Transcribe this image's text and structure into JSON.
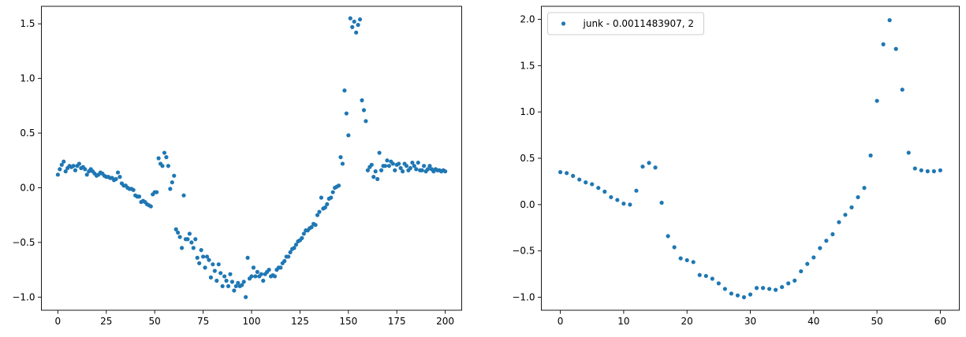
{
  "chart_data": [
    {
      "type": "scatter",
      "marker_color": "#1f77b4",
      "grid": false,
      "legend": null,
      "xlim": [
        -8.5,
        208.5
      ],
      "ylim": [
        -1.12,
        1.66
      ],
      "xticks": [
        0,
        25,
        50,
        75,
        100,
        125,
        150,
        175,
        200
      ],
      "yticks": [
        -1.0,
        -0.5,
        0.0,
        0.5,
        1.0,
        1.5
      ],
      "ytick_labels": [
        "−1.0",
        "−0.5",
        "0.0",
        "0.5",
        "1.0",
        "1.5"
      ],
      "series": [
        {
          "x": [
            0,
            1,
            2,
            3,
            4,
            5,
            6,
            7,
            8,
            9,
            10,
            11,
            12,
            13,
            14,
            15,
            16,
            17,
            18,
            19,
            20,
            21,
            22,
            23,
            24,
            25,
            26,
            27,
            28,
            29,
            30,
            31,
            32,
            33,
            34,
            35,
            36,
            37,
            38,
            39,
            40,
            41,
            42,
            43,
            44,
            45,
            46,
            47,
            48,
            49,
            50,
            51,
            52,
            53,
            54,
            55,
            56,
            57,
            58,
            59,
            60,
            61,
            62,
            63,
            64,
            65,
            66,
            67,
            68,
            69,
            70,
            71,
            72,
            73,
            74,
            75,
            76,
            77,
            78,
            79,
            80,
            81,
            82,
            83,
            84,
            85,
            86,
            87,
            88,
            89,
            90,
            91,
            92,
            93,
            94,
            95,
            96,
            97,
            98,
            99,
            100,
            101,
            102,
            103,
            104,
            105,
            106,
            107,
            108,
            109,
            110,
            111,
            112,
            113,
            114,
            115,
            116,
            117,
            118,
            119,
            120,
            121,
            122,
            123,
            124,
            125,
            126,
            127,
            128,
            129,
            130,
            131,
            132,
            133,
            134,
            135,
            136,
            137,
            138,
            139,
            140,
            141,
            142,
            143,
            144,
            145,
            146,
            147,
            148,
            149,
            150,
            151,
            152,
            153,
            154,
            155,
            156,
            157,
            158,
            159,
            160,
            161,
            162,
            163,
            164,
            165,
            166,
            167,
            168,
            169,
            170,
            171,
            172,
            173,
            174,
            175,
            176,
            177,
            178,
            179,
            180,
            181,
            182,
            183,
            184,
            185,
            186,
            187,
            188,
            189,
            190,
            191,
            192,
            193,
            194,
            195,
            196,
            197,
            198,
            199,
            200
          ],
          "y": [
            0.12,
            0.17,
            0.21,
            0.24,
            0.15,
            0.18,
            0.2,
            0.19,
            0.2,
            0.16,
            0.2,
            0.22,
            0.18,
            0.19,
            0.17,
            0.12,
            0.15,
            0.17,
            0.15,
            0.13,
            0.11,
            0.12,
            0.14,
            0.13,
            0.11,
            0.1,
            0.1,
            0.09,
            0.09,
            0.07,
            0.08,
            0.14,
            0.1,
            0.04,
            0.02,
            0.02,
            0.0,
            -0.01,
            -0.01,
            -0.02,
            -0.07,
            -0.08,
            -0.08,
            -0.13,
            -0.12,
            -0.13,
            -0.15,
            -0.16,
            -0.17,
            -0.06,
            -0.04,
            -0.04,
            0.27,
            0.22,
            0.2,
            0.32,
            0.28,
            0.2,
            -0.01,
            0.05,
            0.11,
            -0.38,
            -0.41,
            -0.45,
            -0.55,
            -0.07,
            -0.47,
            -0.47,
            -0.42,
            -0.5,
            -0.55,
            -0.47,
            -0.64,
            -0.69,
            -0.57,
            -0.63,
            -0.73,
            -0.63,
            -0.66,
            -0.82,
            -0.7,
            -0.76,
            -0.85,
            -0.7,
            -0.78,
            -0.9,
            -0.81,
            -0.85,
            -0.9,
            -0.79,
            -0.86,
            -0.94,
            -0.9,
            -0.87,
            -0.9,
            -0.89,
            -0.86,
            -1.0,
            -0.64,
            -0.83,
            -0.81,
            -0.73,
            -0.81,
            -0.77,
            -0.81,
            -0.79,
            -0.85,
            -0.79,
            -0.77,
            -0.75,
            -0.81,
            -0.8,
            -0.81,
            -0.75,
            -0.73,
            -0.73,
            -0.69,
            -0.67,
            -0.63,
            -0.63,
            -0.59,
            -0.56,
            -0.55,
            -0.52,
            -0.49,
            -0.48,
            -0.46,
            -0.42,
            -0.39,
            -0.39,
            -0.37,
            -0.36,
            -0.33,
            -0.34,
            -0.25,
            -0.22,
            -0.09,
            -0.19,
            -0.18,
            -0.15,
            -0.1,
            -0.09,
            -0.04,
            0.0,
            0.01,
            0.02,
            0.28,
            0.22,
            0.89,
            0.68,
            0.48,
            1.55,
            1.47,
            1.52,
            1.42,
            1.49,
            1.54,
            0.8,
            0.71,
            0.61,
            0.16,
            0.19,
            0.21,
            0.1,
            0.15,
            0.08,
            0.32,
            0.16,
            0.2,
            0.2,
            0.25,
            0.2,
            0.24,
            0.22,
            0.16,
            0.21,
            0.22,
            0.18,
            0.15,
            0.22,
            0.2,
            0.16,
            0.18,
            0.23,
            0.2,
            0.17,
            0.23,
            0.16,
            0.16,
            0.2,
            0.15,
            0.17,
            0.2,
            0.17,
            0.15,
            0.17,
            0.16,
            0.16,
            0.15,
            0.16,
            0.15
          ]
        }
      ]
    },
    {
      "type": "scatter",
      "marker_color": "#1f77b4",
      "grid": false,
      "legend": "top-left",
      "xlim": [
        -3.0,
        63.0
      ],
      "ylim": [
        -1.14,
        2.14
      ],
      "xticks": [
        0,
        10,
        20,
        30,
        40,
        50,
        60
      ],
      "yticks": [
        -1.0,
        -0.5,
        0.0,
        0.5,
        1.0,
        1.5,
        2.0
      ],
      "ytick_labels": [
        "−1.0",
        "−0.5",
        "0.0",
        "0.5",
        "1.0",
        "1.5",
        "2.0"
      ],
      "series": [
        {
          "name": "junk - 0.0011483907, 2",
          "x": [
            0,
            1,
            2,
            3,
            4,
            5,
            6,
            7,
            8,
            9,
            10,
            11,
            12,
            13,
            14,
            15,
            16,
            17,
            18,
            19,
            20,
            21,
            22,
            23,
            24,
            25,
            26,
            27,
            28,
            29,
            30,
            31,
            32,
            33,
            34,
            35,
            36,
            37,
            38,
            39,
            40,
            41,
            42,
            43,
            44,
            45,
            46,
            47,
            48,
            49,
            50,
            51,
            52,
            53,
            54,
            55,
            56,
            57,
            58,
            59,
            60
          ],
          "y": [
            0.35,
            0.34,
            0.31,
            0.27,
            0.24,
            0.22,
            0.18,
            0.14,
            0.08,
            0.05,
            0.01,
            0.0,
            0.15,
            0.41,
            0.45,
            0.4,
            0.02,
            -0.34,
            -0.46,
            -0.58,
            -0.6,
            -0.62,
            -0.76,
            -0.77,
            -0.8,
            -0.85,
            -0.91,
            -0.96,
            -0.98,
            -1.0,
            -0.97,
            -0.9,
            -0.9,
            -0.91,
            -0.92,
            -0.89,
            -0.85,
            -0.82,
            -0.72,
            -0.64,
            -0.57,
            -0.47,
            -0.39,
            -0.32,
            -0.19,
            -0.11,
            -0.03,
            0.08,
            0.18,
            0.53,
            1.12,
            1.73,
            1.99,
            1.68,
            1.24,
            0.56,
            0.39,
            0.37,
            0.36,
            0.36,
            0.37
          ]
        }
      ]
    }
  ]
}
